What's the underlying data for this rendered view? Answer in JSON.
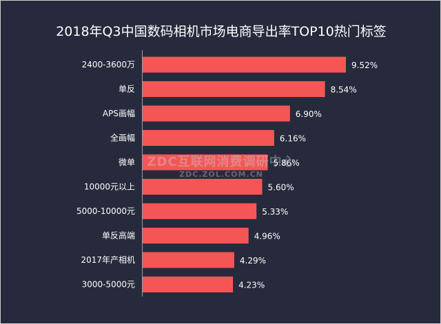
{
  "chart_data": {
    "type": "bar",
    "orientation": "horizontal",
    "title": "2018年Q3中国数码相机市场电商导出率TOP10热门标签",
    "categories": [
      "2400-3600万",
      "单反",
      "APS画幅",
      "全画幅",
      "微单",
      "10000元以上",
      "5000-10000元",
      "单反高端",
      "2017年产相机",
      "3000-5000元"
    ],
    "values": [
      9.52,
      8.54,
      6.9,
      6.16,
      5.86,
      5.6,
      5.33,
      4.96,
      4.29,
      4.23
    ],
    "value_labels": [
      "9.52%",
      "8.54%",
      "6.90%",
      "6.16%",
      "5.86%",
      "5.60%",
      "5.33%",
      "4.96%",
      "4.29%",
      "4.23%"
    ],
    "unit": "%",
    "xlim": [
      0,
      9.52
    ],
    "bar_color": "#f45656",
    "background": "#262a3c",
    "grid": false,
    "legend": "none"
  },
  "watermark": {
    "main": "ZDC互联网消费调研中心",
    "sub": "ZDC.ZOL.COM.CN"
  }
}
